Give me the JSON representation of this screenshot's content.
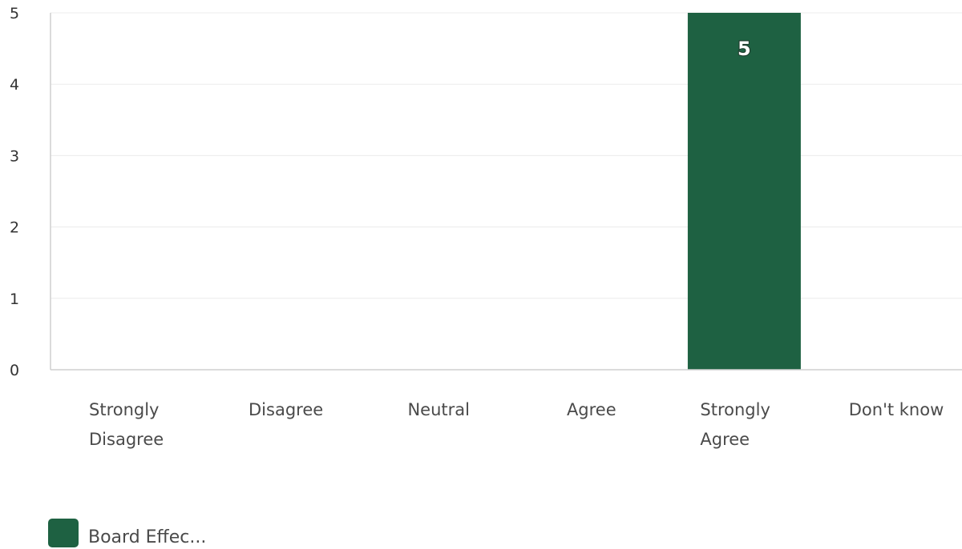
{
  "chart_data": {
    "type": "bar",
    "categories": [
      [
        "Strongly",
        "Disagree"
      ],
      [
        "Disagree"
      ],
      [
        "Neutral"
      ],
      [
        "Agree"
      ],
      [
        "Strongly",
        "Agree"
      ],
      [
        "Don't know"
      ]
    ],
    "series": [
      {
        "name": "Board Effec...",
        "color": "#1e6142",
        "values": [
          0,
          0,
          0,
          0,
          5,
          0
        ],
        "data_labels": [
          "",
          "",
          "",
          "",
          "5",
          ""
        ]
      }
    ],
    "y_ticks": [
      "0",
      "1",
      "2",
      "3",
      "4",
      "5"
    ],
    "ylim": [
      0,
      5
    ],
    "grid": true,
    "legend": "bottom-left"
  }
}
